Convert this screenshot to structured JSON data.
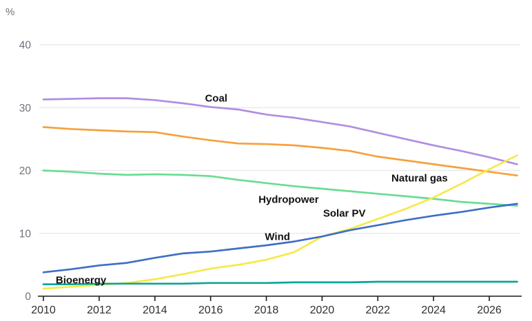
{
  "chart_data": {
    "type": "line",
    "title": "",
    "ylabel": "%",
    "xlabel": "",
    "ylim": [
      0,
      40
    ],
    "xlim": [
      2010,
      2027
    ],
    "grid": "horizontal",
    "legend_position": "inline-labels",
    "y_ticks": [
      0,
      10,
      20,
      30,
      40
    ],
    "x_ticks": [
      2010,
      2012,
      2014,
      2016,
      2018,
      2020,
      2022,
      2024,
      2026
    ],
    "x": [
      2010,
      2011,
      2012,
      2013,
      2014,
      2015,
      2016,
      2017,
      2018,
      2019,
      2020,
      2021,
      2022,
      2023,
      2024,
      2025,
      2026,
      2027
    ],
    "series": [
      {
        "name": "Coal",
        "color": "#b18ee0",
        "values": [
          31.3,
          31.4,
          31.5,
          31.5,
          31.2,
          30.7,
          30.1,
          29.7,
          28.9,
          28.4,
          27.7,
          27.0,
          26.0,
          25.0,
          24.0,
          23.1,
          22.1,
          21.0
        ],
        "label": {
          "text": "Coal",
          "year": 2016.2,
          "value": 31.5
        }
      },
      {
        "name": "Natural gas",
        "color": "#f5a13d",
        "values": [
          26.9,
          26.6,
          26.4,
          26.2,
          26.1,
          25.4,
          24.8,
          24.3,
          24.2,
          24.0,
          23.6,
          23.1,
          22.2,
          21.6,
          21.0,
          20.4,
          19.8,
          19.2
        ],
        "label": {
          "text": "Natural gas",
          "year": 2023.5,
          "value": 18.8
        }
      },
      {
        "name": "Hydropower",
        "color": "#69dd92",
        "values": [
          20.0,
          19.8,
          19.5,
          19.3,
          19.4,
          19.3,
          19.1,
          18.5,
          18.0,
          17.5,
          17.1,
          16.7,
          16.3,
          15.9,
          15.5,
          15.0,
          14.7,
          14.4
        ],
        "label": {
          "text": "Hydropower",
          "year": 2018.8,
          "value": 15.4
        }
      },
      {
        "name": "Solar PV",
        "color": "#f6e949",
        "values": [
          1.2,
          1.5,
          1.8,
          2.1,
          2.7,
          3.5,
          4.4,
          5.0,
          5.8,
          7.0,
          9.5,
          10.7,
          12.3,
          13.9,
          15.7,
          17.9,
          20.2,
          22.4
        ],
        "label": {
          "text": "Solar PV",
          "year": 2020.8,
          "value": 13.2
        }
      },
      {
        "name": "Wind",
        "color": "#3f6fc6",
        "values": [
          3.8,
          4.3,
          4.9,
          5.3,
          6.1,
          6.8,
          7.1,
          7.6,
          8.1,
          8.7,
          9.5,
          10.5,
          11.3,
          12.1,
          12.8,
          13.4,
          14.1,
          14.7
        ],
        "label": {
          "text": "Wind",
          "year": 2018.4,
          "value": 9.5
        }
      },
      {
        "name": "Bioenergy",
        "color": "#0aa596",
        "values": [
          1.9,
          1.9,
          2.0,
          2.0,
          2.0,
          2.0,
          2.1,
          2.1,
          2.1,
          2.2,
          2.2,
          2.2,
          2.3,
          2.3,
          2.3,
          2.3,
          2.3,
          2.3
        ],
        "label": {
          "text": "Bioenergy",
          "year": 2011.35,
          "value": 2.6
        }
      }
    ],
    "style": {
      "grid_color": "#e8e8e8",
      "axis_color": "#1a1a1a",
      "y_tick_label_color": "#70707a",
      "x_tick_label_color": "#2e2e2e",
      "series_label_color": "#111111",
      "background": "#ffffff"
    }
  }
}
